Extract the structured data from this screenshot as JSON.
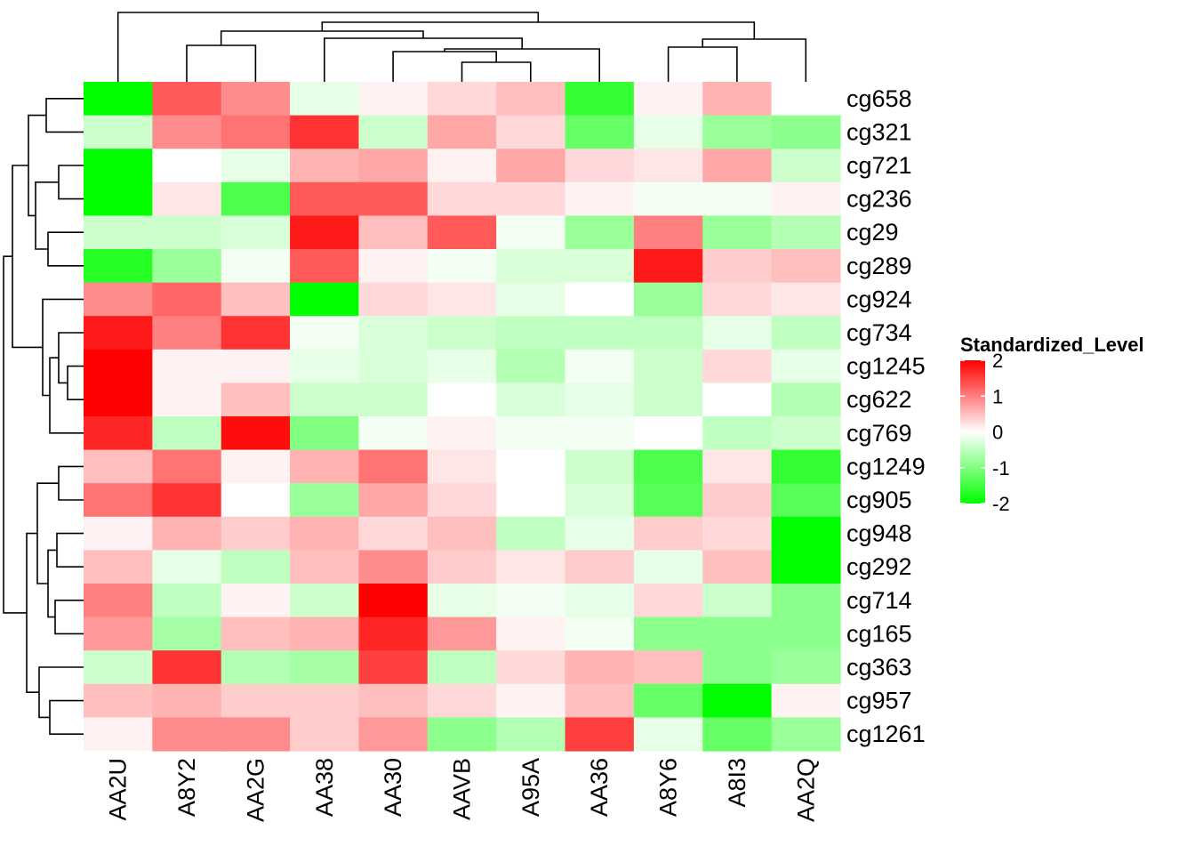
{
  "chart_data": {
    "type": "heatmap",
    "title": "",
    "columns": [
      "AA2U",
      "A8Y2",
      "AA2G",
      "AA38",
      "AA30",
      "AAVB",
      "A95A",
      "AA36",
      "A8Y6",
      "A8I3",
      "AA2Q"
    ],
    "rows": [
      "cg658",
      "cg321",
      "cg721",
      "cg236",
      "cg29",
      "cg289",
      "cg924",
      "cg734",
      "cg1245",
      "cg622",
      "cg769",
      "cg1249",
      "cg905",
      "cg948",
      "cg292",
      "cg714",
      "cg165",
      "cg363",
      "cg957",
      "cg1261"
    ],
    "values": [
      [
        -2.0,
        1.3,
        0.9,
        -0.2,
        0.1,
        0.3,
        0.5,
        -1.6,
        0.1,
        0.6,
        0.0
      ],
      [
        -0.4,
        0.9,
        1.1,
        1.6,
        -0.4,
        0.7,
        0.3,
        -1.2,
        -0.2,
        -0.8,
        -0.9
      ],
      [
        -2.0,
        0.0,
        -0.2,
        0.6,
        0.7,
        0.1,
        0.7,
        0.3,
        0.2,
        0.7,
        -0.4
      ],
      [
        -2.0,
        0.2,
        -1.4,
        1.3,
        1.3,
        0.3,
        0.3,
        0.1,
        -0.1,
        -0.1,
        0.1
      ],
      [
        -0.4,
        -0.4,
        -0.3,
        1.8,
        0.5,
        1.3,
        -0.1,
        -0.8,
        1.0,
        -0.8,
        -0.6
      ],
      [
        -1.7,
        -0.8,
        -0.1,
        1.3,
        0.1,
        -0.1,
        -0.3,
        -0.3,
        1.8,
        0.4,
        0.5
      ],
      [
        0.9,
        1.2,
        0.5,
        -2.0,
        0.3,
        0.2,
        -0.2,
        0.0,
        -0.8,
        0.3,
        0.2
      ],
      [
        1.8,
        1.0,
        1.6,
        -0.1,
        -0.3,
        -0.4,
        -0.5,
        -0.5,
        -0.5,
        -0.2,
        -0.5
      ],
      [
        2.0,
        0.1,
        0.1,
        -0.2,
        -0.3,
        -0.2,
        -0.6,
        -0.1,
        -0.4,
        0.3,
        -0.2
      ],
      [
        2.0,
        0.1,
        0.5,
        -0.4,
        -0.4,
        0.0,
        -0.3,
        -0.2,
        -0.4,
        0.0,
        -0.6
      ],
      [
        1.7,
        -0.5,
        1.9,
        -1.0,
        -0.1,
        0.1,
        -0.1,
        -0.1,
        0.0,
        -0.5,
        -0.4
      ],
      [
        0.5,
        1.1,
        0.1,
        0.6,
        1.1,
        0.2,
        0.0,
        -0.4,
        -1.4,
        0.2,
        -1.6
      ],
      [
        1.1,
        1.6,
        0.0,
        -0.8,
        0.7,
        0.3,
        0.0,
        -0.3,
        -1.3,
        0.4,
        -1.3
      ],
      [
        0.1,
        0.6,
        0.4,
        0.6,
        0.3,
        0.5,
        -0.5,
        -0.2,
        0.4,
        0.3,
        -2.0
      ],
      [
        0.5,
        -0.2,
        -0.5,
        0.5,
        0.9,
        0.4,
        0.2,
        0.4,
        -0.2,
        0.5,
        -2.0
      ],
      [
        1.0,
        -0.5,
        0.1,
        -0.4,
        2.0,
        -0.2,
        -0.1,
        -0.2,
        0.3,
        -0.4,
        -0.9
      ],
      [
        0.8,
        -0.7,
        0.5,
        0.6,
        1.7,
        0.8,
        0.1,
        -0.1,
        -0.9,
        -0.9,
        -0.9
      ],
      [
        -0.4,
        1.6,
        -0.6,
        -0.7,
        1.5,
        -0.5,
        0.3,
        0.6,
        0.5,
        -0.9,
        -0.8
      ],
      [
        0.5,
        0.6,
        0.4,
        0.4,
        0.5,
        0.3,
        0.1,
        0.5,
        -1.2,
        -2.0,
        0.1
      ],
      [
        0.1,
        0.9,
        0.9,
        0.4,
        0.8,
        -0.9,
        -0.6,
        1.5,
        -0.2,
        -1.2,
        -0.8
      ]
    ],
    "colorscale": {
      "low": "#00ff00",
      "mid": "#ffffff",
      "high": "#ff0000",
      "min": -2,
      "max": 2
    },
    "legend": {
      "title": "Standardized_Level",
      "ticks": [
        2,
        1,
        0,
        -1,
        -2
      ],
      "tick_labels": [
        "2",
        "1",
        "0",
        "-1",
        "-2"
      ],
      "placement": "right"
    },
    "column_dendrogram": {
      "merges": [
        [
          "AA2U",
          [
            "A8Y2",
            "AA2G",
            "AA38",
            "AA30",
            "AAVB",
            "A95A",
            "AA36",
            "A8Y6",
            "A8I3",
            "AA2Q"
          ]
        ],
        [
          [
            "A8Y2",
            "AA2G",
            "AA38",
            "AA30",
            "AAVB",
            "A95A",
            "AA36"
          ],
          [
            "A8Y6",
            "A8I3",
            "AA2Q"
          ]
        ],
        [
          [
            "A8Y2",
            "AA2G"
          ],
          [
            "AA38",
            "AA30",
            "AAVB",
            "A95A",
            "AA36"
          ]
        ],
        [
          "AA38",
          [
            "AA30",
            "AAVB",
            "A95A",
            "AA36"
          ]
        ],
        [
          [
            "AA30",
            "AAVB",
            "A95A"
          ],
          "AA36"
        ],
        [
          "AA30",
          [
            "AAVB",
            "A95A"
          ]
        ],
        [
          "AA2Q",
          [
            "A8Y6",
            "A8I3"
          ]
        ]
      ]
    },
    "row_dendrogram": {
      "groups": [
        [
          "cg658",
          "cg321",
          "cg721",
          "cg236",
          "cg29",
          "cg289"
        ],
        [
          "cg924",
          "cg734",
          "cg1245",
          "cg622",
          "cg769"
        ],
        [
          "cg1249",
          "cg905",
          "cg948",
          "cg292",
          "cg714",
          "cg165"
        ],
        [
          "cg363",
          "cg957",
          "cg1261"
        ]
      ]
    }
  }
}
